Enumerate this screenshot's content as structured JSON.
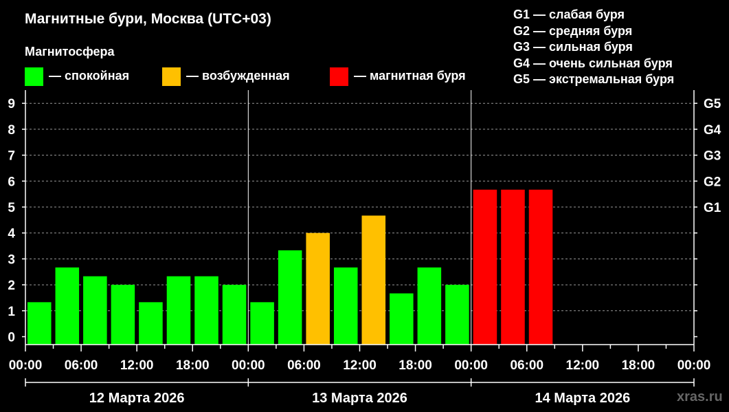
{
  "title": "Магнитные бури, Москва (UTC+03)",
  "subtitle": "Магнитосфера",
  "legend": [
    {
      "color": "#00ff00",
      "label": "— спокойная"
    },
    {
      "color": "#ffc000",
      "label": "— возбужденная"
    },
    {
      "color": "#ff0000",
      "label": "— магнитная буря"
    }
  ],
  "g_levels": [
    "G1 — слабая буря",
    "G2 — средняя буря",
    "G3 — сильная буря",
    "G4 — очень сильная буря",
    "G5 — экстремальная буря"
  ],
  "watermark": "xras.ru",
  "chart_data": {
    "type": "bar",
    "ylim": [
      0,
      9
    ],
    "y_ticks": [
      "0",
      "1",
      "2",
      "3",
      "4",
      "5",
      "6",
      "7",
      "8",
      "9"
    ],
    "right_ticks": [
      {
        "value": 5,
        "label": "G1"
      },
      {
        "value": 6,
        "label": "G2"
      },
      {
        "value": 7,
        "label": "G3"
      },
      {
        "value": 8,
        "label": "G4"
      },
      {
        "value": 9,
        "label": "G5"
      }
    ],
    "x_tick_labels": [
      "00:00",
      "06:00",
      "12:00",
      "18:00",
      "00:00",
      "06:00",
      "12:00",
      "18:00",
      "00:00",
      "06:00",
      "12:00",
      "18:00",
      "00:00"
    ],
    "days": [
      "12 Марта 2026",
      "13 Марта 2026",
      "14 Марта 2026"
    ],
    "grid": true,
    "values": [
      1.33,
      2.67,
      2.33,
      2.0,
      1.33,
      2.33,
      2.33,
      2.0,
      1.33,
      3.33,
      4.0,
      2.67,
      4.67,
      1.67,
      2.67,
      2.0,
      5.67,
      5.67,
      5.67
    ],
    "levels": [
      "quiet",
      "quiet",
      "quiet",
      "quiet",
      "quiet",
      "quiet",
      "quiet",
      "quiet",
      "quiet",
      "quiet",
      "active",
      "quiet",
      "active",
      "quiet",
      "quiet",
      "quiet",
      "storm",
      "storm",
      "storm"
    ],
    "level_colors": {
      "quiet": "#00ff00",
      "active": "#ffc000",
      "storm": "#ff0000"
    }
  }
}
